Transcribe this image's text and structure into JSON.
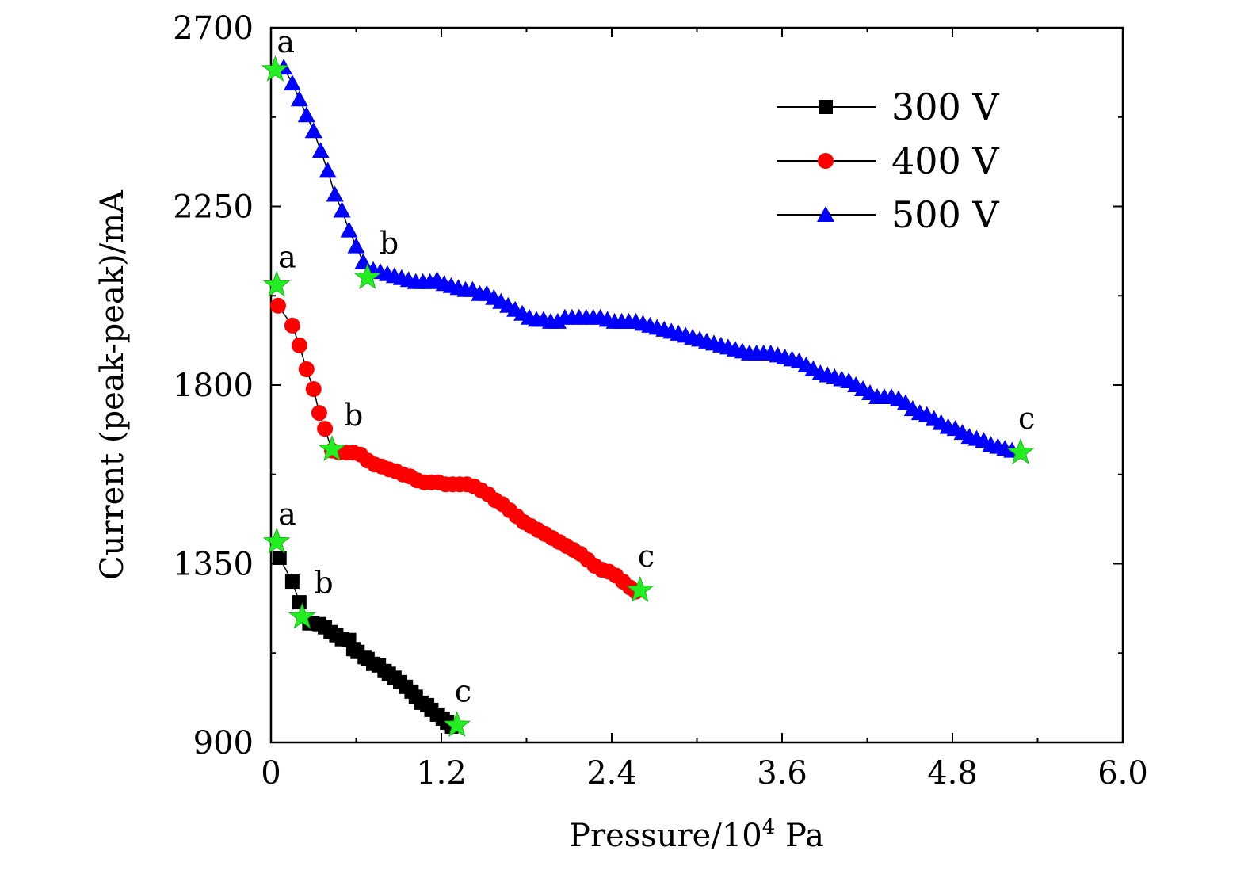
{
  "chart_data": {
    "type": "scatter",
    "xlabel": "Pressure/10",
    "xlabel_sup": "4",
    "xlabel_unit": " Pa",
    "ylabel": "Current (peak-peak)/mA",
    "xlim": [
      0,
      6.0
    ],
    "ylim": [
      900,
      2700
    ],
    "x_ticks": [
      "0",
      "1.2",
      "2.4",
      "3.6",
      "4.8",
      "6.0"
    ],
    "x_tick_values": [
      0,
      1.2,
      2.4,
      3.6,
      4.8,
      6.0
    ],
    "y_ticks": [
      "900",
      "1350",
      "1800",
      "2250",
      "2700"
    ],
    "y_tick_values": [
      900,
      1350,
      1800,
      2250,
      2700
    ],
    "legend_position": "top-right",
    "series": [
      {
        "name": "300 V",
        "color": "#000000",
        "marker": "square",
        "x": [
          0.06,
          0.15,
          0.2,
          0.27,
          0.29,
          0.34,
          0.38,
          0.42,
          0.46,
          0.5,
          0.55,
          0.58,
          0.61,
          0.66,
          0.68,
          0.72,
          0.76,
          0.8,
          0.83,
          0.87,
          0.91,
          0.95,
          0.99,
          1.02,
          1.06,
          1.1,
          1.13,
          1.17,
          1.21,
          1.24,
          1.27
        ],
        "y": [
          1365,
          1305,
          1253,
          1200,
          1200,
          1198,
          1190,
          1178,
          1170,
          1160,
          1158,
          1135,
          1128,
          1115,
          1110,
          1098,
          1094,
          1080,
          1073,
          1063,
          1052,
          1040,
          1028,
          1015,
          1000,
          994,
          982,
          970,
          960,
          950,
          940
        ]
      },
      {
        "name": "400 V",
        "color": "#ff0000",
        "marker": "circle",
        "x": [
          0.05,
          0.15,
          0.2,
          0.25,
          0.3,
          0.34,
          0.38,
          0.43,
          0.48,
          0.53,
          0.58,
          0.63,
          0.68,
          0.73,
          0.78,
          0.83,
          0.88,
          0.93,
          0.98,
          1.03,
          1.08,
          1.13,
          1.18,
          1.23,
          1.28,
          1.33,
          1.38,
          1.43,
          1.48,
          1.53,
          1.58,
          1.63,
          1.68,
          1.73,
          1.78,
          1.83,
          1.88,
          1.93,
          1.98,
          2.03,
          2.08,
          2.13,
          2.18,
          2.23,
          2.28,
          2.33,
          2.38,
          2.43,
          2.48,
          2.53,
          2.57
        ],
        "y": [
          2000,
          1950,
          1900,
          1840,
          1790,
          1730,
          1690,
          1635,
          1630,
          1630,
          1630,
          1625,
          1610,
          1600,
          1595,
          1588,
          1583,
          1575,
          1570,
          1560,
          1555,
          1555,
          1555,
          1550,
          1550,
          1550,
          1550,
          1545,
          1535,
          1525,
          1510,
          1500,
          1485,
          1470,
          1455,
          1445,
          1435,
          1425,
          1415,
          1405,
          1395,
          1385,
          1375,
          1360,
          1345,
          1335,
          1330,
          1320,
          1305,
          1290,
          1280
        ]
      },
      {
        "name": "500 V",
        "color": "#0000ff",
        "marker": "triangle",
        "x": [
          0.09,
          0.15,
          0.2,
          0.25,
          0.3,
          0.35,
          0.4,
          0.45,
          0.5,
          0.55,
          0.6,
          0.65,
          0.72,
          0.77,
          0.82,
          0.87,
          0.92,
          0.97,
          1.02,
          1.07,
          1.12,
          1.17,
          1.22,
          1.27,
          1.32,
          1.37,
          1.42,
          1.47,
          1.52,
          1.57,
          1.62,
          1.67,
          1.72,
          1.77,
          1.82,
          1.87,
          1.92,
          1.97,
          2.02,
          2.07,
          2.12,
          2.17,
          2.22,
          2.27,
          2.32,
          2.37,
          2.42,
          2.47,
          2.52,
          2.57,
          2.62,
          2.67,
          2.72,
          2.77,
          2.82,
          2.87,
          2.92,
          2.97,
          3.02,
          3.07,
          3.12,
          3.17,
          3.22,
          3.27,
          3.32,
          3.37,
          3.42,
          3.47,
          3.52,
          3.57,
          3.62,
          3.67,
          3.72,
          3.77,
          3.82,
          3.87,
          3.92,
          3.97,
          4.02,
          4.07,
          4.12,
          4.17,
          4.22,
          4.27,
          4.32,
          4.37,
          4.42,
          4.47,
          4.52,
          4.57,
          4.62,
          4.67,
          4.72,
          4.77,
          4.82,
          4.87,
          4.92,
          4.97,
          5.02,
          5.07,
          5.12,
          5.17,
          5.22
        ],
        "y": [
          2600,
          2560,
          2520,
          2480,
          2440,
          2390,
          2340,
          2280,
          2240,
          2190,
          2150,
          2110,
          2090,
          2085,
          2080,
          2075,
          2070,
          2065,
          2060,
          2060,
          2060,
          2065,
          2055,
          2050,
          2045,
          2040,
          2040,
          2030,
          2030,
          2020,
          2010,
          2000,
          1990,
          1980,
          1970,
          1965,
          1965,
          1960,
          1960,
          1970,
          1970,
          1970,
          1970,
          1970,
          1970,
          1965,
          1960,
          1960,
          1960,
          1960,
          1955,
          1950,
          1945,
          1940,
          1935,
          1930,
          1925,
          1920,
          1915,
          1910,
          1905,
          1900,
          1895,
          1890,
          1885,
          1880,
          1880,
          1880,
          1880,
          1875,
          1870,
          1865,
          1860,
          1850,
          1840,
          1830,
          1825,
          1820,
          1815,
          1810,
          1800,
          1790,
          1780,
          1770,
          1770,
          1770,
          1765,
          1755,
          1740,
          1730,
          1725,
          1715,
          1705,
          1695,
          1690,
          1680,
          1670,
          1665,
          1660,
          1650,
          1645,
          1640,
          1635
        ]
      }
    ],
    "markers": {
      "color": "#22ee22",
      "points": [
        {
          "label": "a",
          "x": 0.03,
          "y": 2594
        },
        {
          "label": "b",
          "x": 0.68,
          "y": 2071
        },
        {
          "label": "c",
          "x": 5.28,
          "y": 1630
        },
        {
          "label": "a",
          "x": 0.04,
          "y": 2052
        },
        {
          "label": "b",
          "x": 0.43,
          "y": 1638
        },
        {
          "label": "c",
          "x": 2.6,
          "y": 1283
        },
        {
          "label": "a",
          "x": 0.04,
          "y": 1405
        },
        {
          "label": "b",
          "x": 0.22,
          "y": 1216
        },
        {
          "label": "c",
          "x": 1.31,
          "y": 943
        }
      ]
    }
  }
}
